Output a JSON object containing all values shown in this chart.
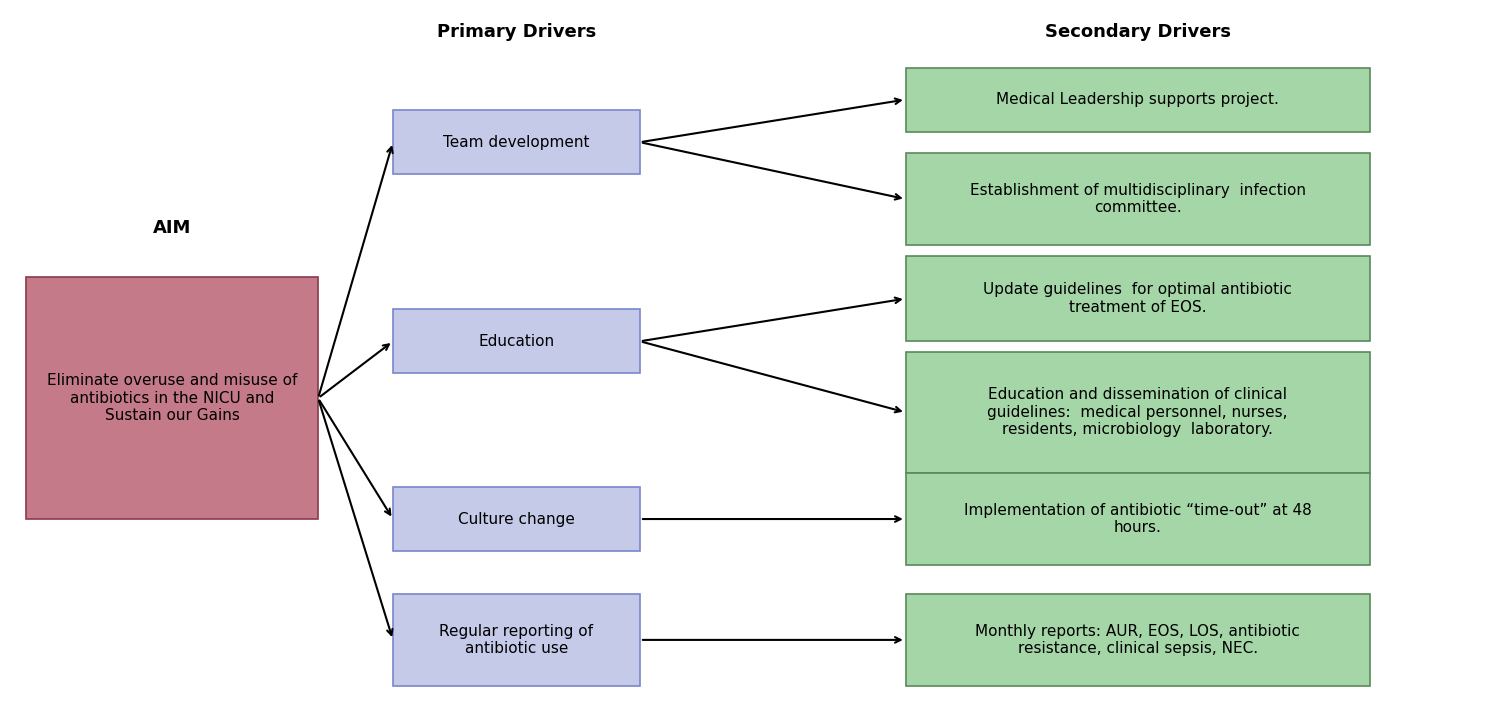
{
  "aim_label": "AIM",
  "aim_text": "Eliminate overuse and misuse of\nantibiotics in the NICU and\nSustain our Gains",
  "aim_color": "#c47a88",
  "aim_edge_color": "#8b3a4a",
  "primary_label": "Primary Drivers",
  "secondary_label": "Secondary Drivers",
  "primary_drivers": [
    "Team development",
    "Education",
    "Culture change",
    "Regular reporting of\nantibiotic use"
  ],
  "primary_color": "#c5cae9",
  "primary_edge_color": "#7986cb",
  "secondary_drivers": [
    [
      "Medical Leadership supports project.",
      "Establishment of multidisciplinary  infection\ncommittee."
    ],
    [
      "Update guidelines  for optimal antibiotic\ntreatment of EOS.",
      "Education and dissemination of clinical\nguidelines:  medical personnel, nurses,\nresidents, microbiology  laboratory."
    ],
    [
      "Implementation of antibiotic “time-out” at 48\nhours."
    ],
    [
      "Monthly reports: AUR, EOS, LOS, antibiotic\nresistance, clinical sepsis, NEC."
    ]
  ],
  "secondary_color": "#a5d6a7",
  "secondary_edge_color": "#5a8a5a",
  "bg_color": "#ffffff",
  "header_fontsize": 13,
  "label_fontsize": 11,
  "aim_fontsize": 11
}
